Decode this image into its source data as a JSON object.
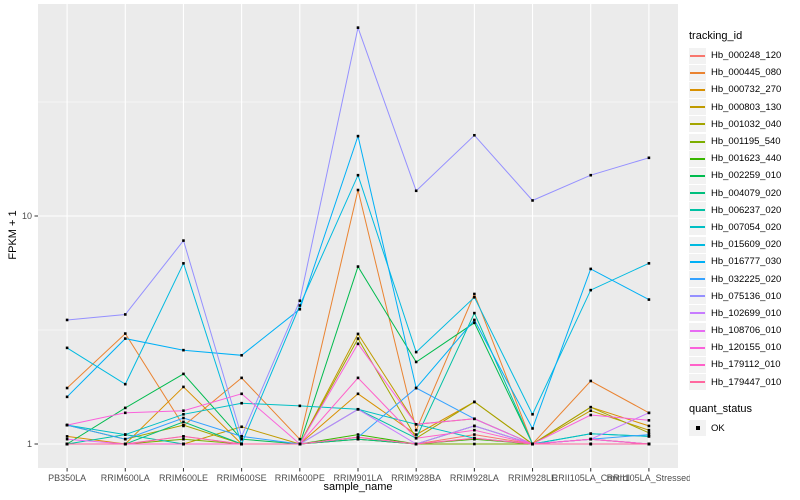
{
  "figure": {
    "background": "#FFFFFF",
    "panel_background": "#EBEBEB",
    "grid_color": "#FFFFFF",
    "axis_text_color": "#4D4D4D",
    "tick_color": "#333333",
    "point_color": "#000000"
  },
  "axes": {
    "x_label": "sample_name",
    "y_label": "FPKM + 1",
    "y_tick_labels": [
      "10",
      "1"
    ]
  },
  "legend": {
    "color_title": "tracking_id",
    "shape_title": "quant_status",
    "shape_label": "OK"
  },
  "chart_data": {
    "type": "line",
    "x_type": "categorical",
    "y_scale": "log10",
    "xlabel": "sample_name",
    "ylabel": "FPKM + 1",
    "grid": true,
    "legend_position": "right",
    "y_ticks": [
      10,
      1
    ],
    "y_minor_ticks": [
      31.62,
      3.162
    ],
    "ylim": [
      0.79,
      81
    ],
    "points": {
      "shape": "filled-square",
      "color": "#000000",
      "legend_label": "OK"
    },
    "categories": [
      "PB350LA",
      "RRIM600LA",
      "RRIM600LE",
      "RRIM600SE",
      "RRIM600PE",
      "RRIM901LA",
      "RRIM928BA",
      "RRIM928LA",
      "RRIM928LE",
      "RRII105LA_Control",
      "RRII105LA_Stressed"
    ],
    "series": [
      {
        "name": "Hb_000248_120",
        "color": "#F8766D",
        "values": [
          1.0,
          1.0,
          1.0,
          1.0,
          1.0,
          1.05,
          1.0,
          1.1,
          1.0,
          1.0,
          1.0
        ]
      },
      {
        "name": "Hb_000445_080",
        "color": "#EA8331",
        "values": [
          1.76,
          3.05,
          1.2,
          1.95,
          1.05,
          13.0,
          1.15,
          4.55,
          1.0,
          1.89,
          1.37
        ]
      },
      {
        "name": "Hb_000732_270",
        "color": "#D89000",
        "values": [
          1.08,
          1.0,
          1.78,
          1.0,
          1.0,
          1.66,
          1.1,
          1.53,
          1.0,
          1.45,
          1.2
        ]
      },
      {
        "name": "Hb_000803_130",
        "color": "#C09B00",
        "values": [
          1.0,
          1.0,
          1.0,
          1.19,
          1.0,
          3.04,
          1.22,
          1.29,
          1.0,
          1.4,
          1.15
        ]
      },
      {
        "name": "Hb_001032_040",
        "color": "#A3A500",
        "values": [
          1.21,
          1.05,
          1.21,
          1.0,
          1.0,
          2.9,
          1.06,
          1.53,
          1.0,
          1.45,
          1.12
        ]
      },
      {
        "name": "Hb_001195_540",
        "color": "#7CAE00",
        "values": [
          1.0,
          1.0,
          1.05,
          1.0,
          1.0,
          1.05,
          1.0,
          1.0,
          1.0,
          1.0,
          1.0
        ]
      },
      {
        "name": "Hb_001623_440",
        "color": "#39B600",
        "values": [
          1.0,
          1.0,
          1.0,
          1.0,
          1.0,
          1.1,
          1.0,
          1.05,
          1.0,
          1.0,
          1.0
        ]
      },
      {
        "name": "Hb_002259_010",
        "color": "#00BB4E",
        "values": [
          1.0,
          1.44,
          2.03,
          1.05,
          1.0,
          6.0,
          2.29,
          3.4,
          1.0,
          1.05,
          1.0
        ]
      },
      {
        "name": "Hb_004079_020",
        "color": "#00BF7D",
        "values": [
          1.0,
          1.0,
          1.25,
          1.0,
          1.0,
          1.05,
          1.0,
          1.2,
          1.0,
          1.0,
          1.0
        ]
      },
      {
        "name": "Hb_006237_020",
        "color": "#00C1A3",
        "values": [
          1.0,
          1.1,
          1.0,
          1.0,
          1.0,
          1.42,
          1.06,
          3.75,
          1.0,
          1.11,
          1.08
        ]
      },
      {
        "name": "Hb_007054_020",
        "color": "#00BFC4",
        "values": [
          1.21,
          1.1,
          1.35,
          1.51,
          1.47,
          1.42,
          1.22,
          1.06,
          1.0,
          1.11,
          1.08
        ]
      },
      {
        "name": "Hb_015609_020",
        "color": "#00BAE0",
        "values": [
          2.64,
          1.83,
          6.2,
          1.0,
          4.05,
          15.1,
          2.53,
          4.4,
          1.35,
          4.73,
          6.2
        ]
      },
      {
        "name": "Hb_016777_030",
        "color": "#00B0F6",
        "values": [
          1.61,
          2.9,
          2.58,
          2.45,
          3.9,
          22.4,
          1.76,
          3.5,
          1.17,
          5.86,
          4.3
        ]
      },
      {
        "name": "Hb_032225_020",
        "color": "#35A2FF",
        "values": [
          1.21,
          1.05,
          1.3,
          1.08,
          1.0,
          1.07,
          1.76,
          1.29,
          1.0,
          1.05,
          1.1
        ]
      },
      {
        "name": "Hb_075136_010",
        "color": "#9590FF",
        "values": [
          3.5,
          3.7,
          7.8,
          1.08,
          4.25,
          67.0,
          12.9,
          22.6,
          11.7,
          15.1,
          18.0
        ]
      },
      {
        "name": "Hb_102699_010",
        "color": "#C77CFF",
        "values": [
          1.0,
          1.0,
          1.08,
          1.0,
          1.0,
          1.42,
          1.0,
          1.2,
          1.0,
          1.05,
          1.37
        ]
      },
      {
        "name": "Hb_108706_010",
        "color": "#E76BF3",
        "values": [
          1.05,
          1.0,
          1.0,
          1.0,
          1.0,
          1.07,
          1.0,
          1.06,
          1.0,
          1.05,
          1.0
        ]
      },
      {
        "name": "Hb_120155_010",
        "color": "#FA62DB",
        "values": [
          1.21,
          1.37,
          1.4,
          1.66,
          1.0,
          2.75,
          1.22,
          1.29,
          1.0,
          1.34,
          1.27
        ]
      },
      {
        "name": "Hb_179112_010",
        "color": "#FF61C9",
        "values": [
          1.0,
          1.0,
          1.0,
          1.0,
          1.0,
          1.95,
          1.06,
          1.15,
          1.0,
          1.05,
          1.0
        ]
      },
      {
        "name": "Hb_179447_010",
        "color": "#FF689F",
        "values": [
          1.0,
          1.0,
          1.08,
          1.0,
          1.0,
          1.07,
          1.0,
          1.06,
          1.0,
          1.0,
          1.0
        ]
      }
    ]
  }
}
